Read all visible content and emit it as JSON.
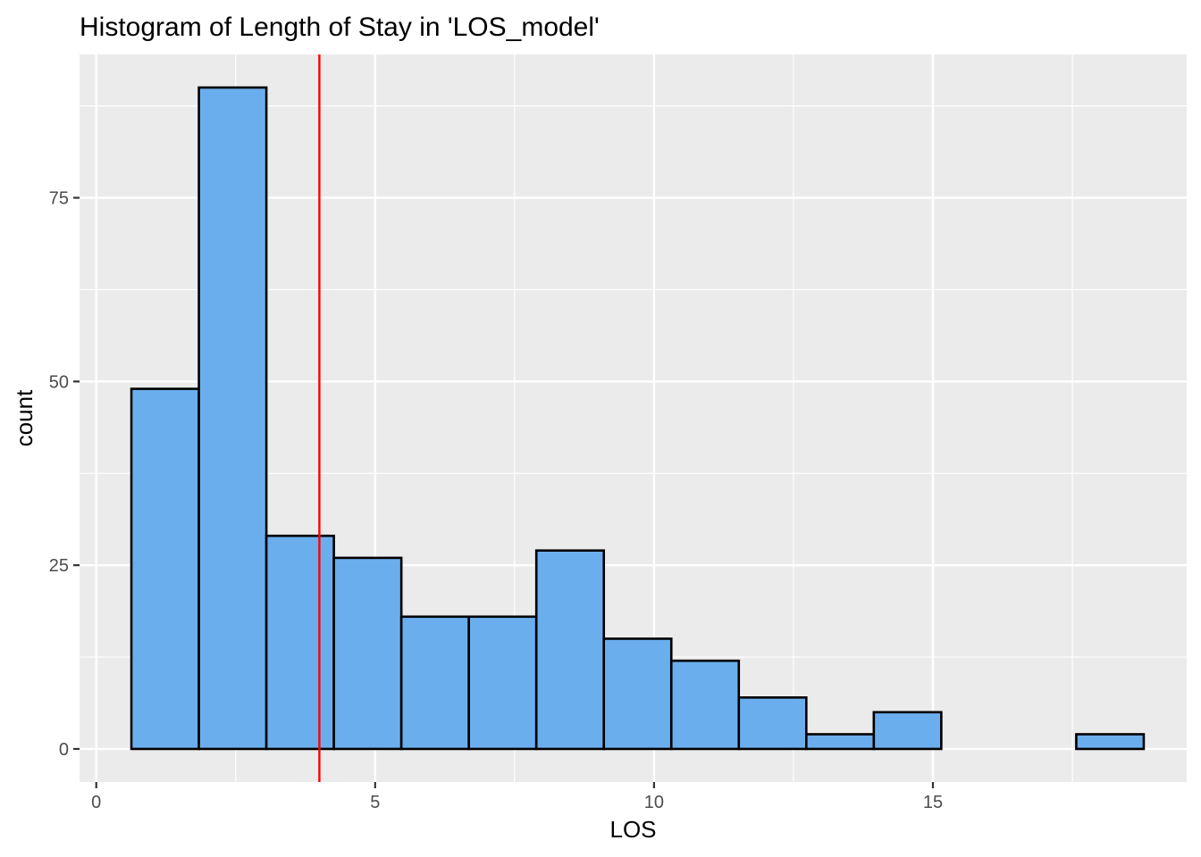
{
  "chart_data": {
    "type": "bar",
    "title": "Histogram of Length of Stay in 'LOS_model'",
    "xlabel": "LOS",
    "ylabel": "count",
    "xlim": [
      -0.3,
      19.55
    ],
    "ylim": [
      -4.5,
      94.5
    ],
    "x_ticks": [
      0,
      5,
      10,
      15
    ],
    "y_ticks": [
      0,
      25,
      50,
      75
    ],
    "grid": true,
    "bins": [
      {
        "x0": 0.63,
        "x1": 1.84,
        "count": 49
      },
      {
        "x0": 1.84,
        "x1": 3.05,
        "count": 90
      },
      {
        "x0": 3.05,
        "x1": 4.26,
        "count": 29
      },
      {
        "x0": 4.26,
        "x1": 5.47,
        "count": 26
      },
      {
        "x0": 5.47,
        "x1": 6.68,
        "count": 18
      },
      {
        "x0": 6.68,
        "x1": 7.89,
        "count": 18
      },
      {
        "x0": 7.89,
        "x1": 9.1,
        "count": 27
      },
      {
        "x0": 9.1,
        "x1": 10.31,
        "count": 15
      },
      {
        "x0": 10.31,
        "x1": 11.52,
        "count": 12
      },
      {
        "x0": 11.52,
        "x1": 12.73,
        "count": 7
      },
      {
        "x0": 12.73,
        "x1": 13.94,
        "count": 2
      },
      {
        "x0": 13.94,
        "x1": 15.15,
        "count": 5
      },
      {
        "x0": 15.15,
        "x1": 16.36,
        "count": 0
      },
      {
        "x0": 16.36,
        "x1": 17.57,
        "count": 0
      },
      {
        "x0": 17.57,
        "x1": 18.78,
        "count": 2
      }
    ],
    "vline": {
      "x": 4.0,
      "color": "#ff0000"
    },
    "colors": {
      "panel": "#ebebeb",
      "grid": "#ffffff",
      "bar_fill": "#6baeed",
      "bar_stroke": "#000000",
      "tick": "#333333"
    }
  }
}
